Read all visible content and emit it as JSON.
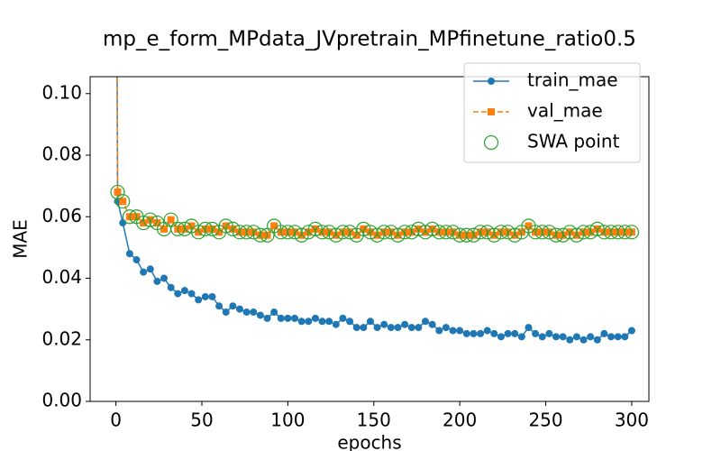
{
  "chart_data": {
    "type": "line",
    "title": "mp_e_form_MPdata_JVpretrain_MPfinetune_ratio0.5",
    "xlabel": "epochs",
    "ylabel": "MAE",
    "xlim": [
      -15,
      310
    ],
    "ylim": [
      0,
      0.1055
    ],
    "xticks": [
      0,
      50,
      100,
      150,
      200,
      250,
      300
    ],
    "yticks": [
      {
        "value": 0,
        "label": "0.00"
      },
      {
        "value": 0.02,
        "label": "0.02"
      },
      {
        "value": 0.04,
        "label": "0.04"
      },
      {
        "value": 0.06,
        "label": "0.06"
      },
      {
        "value": 0.08,
        "label": "0.08"
      },
      {
        "value": 0.1,
        "label": "0.10"
      }
    ],
    "grid": false,
    "legend": "upper right",
    "series": [
      {
        "name": "train_mae",
        "color": "#1f77b4",
        "marker": "circle",
        "linestyle": "solid",
        "x": [
          0,
          1,
          4,
          8,
          12,
          16,
          20,
          24,
          28,
          32,
          36,
          40,
          44,
          48,
          52,
          56,
          60,
          64,
          68,
          72,
          76,
          80,
          84,
          88,
          92,
          96,
          100,
          104,
          108,
          112,
          116,
          120,
          124,
          128,
          132,
          136,
          140,
          144,
          148,
          152,
          156,
          160,
          164,
          168,
          172,
          176,
          180,
          184,
          188,
          192,
          196,
          200,
          204,
          208,
          212,
          216,
          220,
          224,
          228,
          232,
          236,
          240,
          244,
          248,
          252,
          256,
          260,
          264,
          268,
          272,
          276,
          280,
          284,
          288,
          292,
          296,
          300
        ],
        "values": [
          0.2,
          0.065,
          0.058,
          0.048,
          0.046,
          0.042,
          0.043,
          0.039,
          0.04,
          0.037,
          0.035,
          0.036,
          0.035,
          0.033,
          0.034,
          0.034,
          0.031,
          0.029,
          0.031,
          0.03,
          0.029,
          0.029,
          0.028,
          0.027,
          0.029,
          0.027,
          0.027,
          0.027,
          0.026,
          0.026,
          0.027,
          0.026,
          0.026,
          0.025,
          0.027,
          0.026,
          0.024,
          0.024,
          0.026,
          0.024,
          0.025,
          0.024,
          0.024,
          0.025,
          0.024,
          0.024,
          0.026,
          0.025,
          0.023,
          0.024,
          0.023,
          0.023,
          0.022,
          0.022,
          0.022,
          0.023,
          0.022,
          0.021,
          0.022,
          0.022,
          0.021,
          0.024,
          0.022,
          0.021,
          0.022,
          0.021,
          0.021,
          0.02,
          0.021,
          0.02,
          0.021,
          0.02,
          0.022,
          0.021,
          0.021,
          0.021,
          0.023
        ]
      },
      {
        "name": "val_mae",
        "color": "#ff7f0e",
        "marker": "square",
        "linestyle": "dashed",
        "x": [
          0,
          1,
          4,
          8,
          12,
          16,
          20,
          24,
          28,
          32,
          36,
          40,
          44,
          48,
          52,
          56,
          60,
          64,
          68,
          72,
          76,
          80,
          84,
          88,
          92,
          96,
          100,
          104,
          108,
          112,
          116,
          120,
          124,
          128,
          132,
          136,
          140,
          144,
          148,
          152,
          156,
          160,
          164,
          168,
          172,
          176,
          180,
          184,
          188,
          192,
          196,
          200,
          204,
          208,
          212,
          216,
          220,
          224,
          228,
          232,
          236,
          240,
          244,
          248,
          252,
          256,
          260,
          264,
          268,
          272,
          276,
          280,
          284,
          288,
          292,
          296,
          300
        ],
        "values": [
          0.2,
          0.068,
          0.065,
          0.06,
          0.06,
          0.058,
          0.059,
          0.058,
          0.056,
          0.059,
          0.056,
          0.056,
          0.057,
          0.055,
          0.056,
          0.056,
          0.055,
          0.057,
          0.056,
          0.055,
          0.055,
          0.055,
          0.054,
          0.054,
          0.057,
          0.055,
          0.055,
          0.055,
          0.054,
          0.055,
          0.056,
          0.055,
          0.055,
          0.054,
          0.055,
          0.055,
          0.054,
          0.056,
          0.055,
          0.054,
          0.055,
          0.055,
          0.054,
          0.055,
          0.055,
          0.056,
          0.055,
          0.056,
          0.055,
          0.055,
          0.055,
          0.054,
          0.054,
          0.054,
          0.055,
          0.055,
          0.054,
          0.055,
          0.055,
          0.054,
          0.055,
          0.057,
          0.055,
          0.055,
          0.055,
          0.054,
          0.054,
          0.055,
          0.054,
          0.055,
          0.055,
          0.056,
          0.055,
          0.055,
          0.055,
          0.055,
          0.055
        ]
      },
      {
        "name": "SWA point",
        "color": "#2ca02c",
        "marker": "open-circle",
        "linestyle": "none",
        "x": [
          1,
          4,
          8,
          12,
          16,
          20,
          24,
          28,
          32,
          36,
          40,
          44,
          48,
          52,
          56,
          60,
          64,
          68,
          72,
          76,
          80,
          84,
          88,
          92,
          96,
          100,
          104,
          108,
          112,
          116,
          120,
          124,
          128,
          132,
          136,
          140,
          144,
          148,
          152,
          156,
          160,
          164,
          168,
          172,
          176,
          180,
          184,
          188,
          192,
          196,
          200,
          204,
          208,
          212,
          216,
          220,
          224,
          228,
          232,
          236,
          240,
          244,
          248,
          252,
          256,
          260,
          264,
          268,
          272,
          276,
          280,
          284,
          288,
          292,
          296,
          300
        ],
        "values": [
          0.068,
          0.065,
          0.06,
          0.06,
          0.058,
          0.059,
          0.058,
          0.056,
          0.059,
          0.056,
          0.056,
          0.057,
          0.055,
          0.056,
          0.056,
          0.055,
          0.057,
          0.056,
          0.055,
          0.055,
          0.055,
          0.054,
          0.054,
          0.057,
          0.055,
          0.055,
          0.055,
          0.054,
          0.055,
          0.056,
          0.055,
          0.055,
          0.054,
          0.055,
          0.055,
          0.054,
          0.056,
          0.055,
          0.054,
          0.055,
          0.055,
          0.054,
          0.055,
          0.055,
          0.056,
          0.055,
          0.056,
          0.055,
          0.055,
          0.055,
          0.054,
          0.054,
          0.054,
          0.055,
          0.055,
          0.054,
          0.055,
          0.055,
          0.054,
          0.055,
          0.057,
          0.055,
          0.055,
          0.055,
          0.054,
          0.054,
          0.055,
          0.054,
          0.055,
          0.055,
          0.056,
          0.055,
          0.055,
          0.055,
          0.055,
          0.055
        ]
      }
    ]
  }
}
